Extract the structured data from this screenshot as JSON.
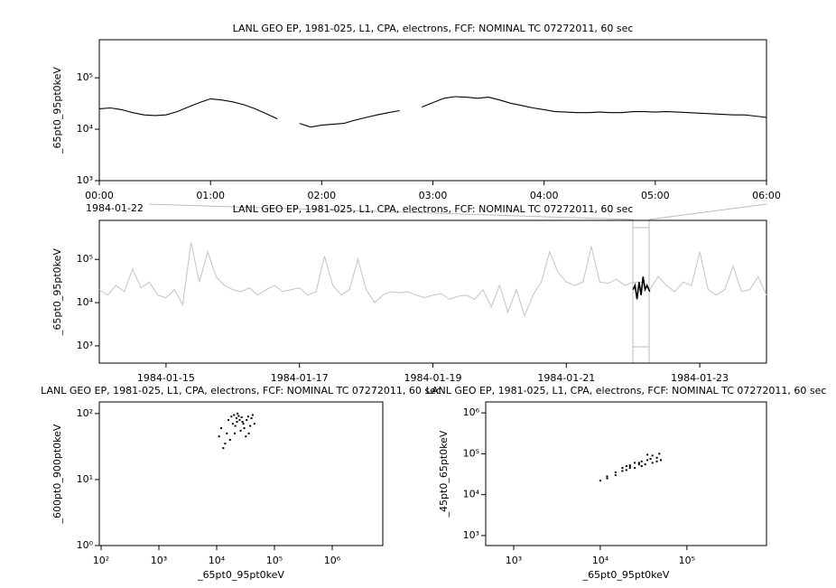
{
  "chart_data": [
    {
      "type": "line",
      "title": "LANL GEO EP, 1981-025, L1, CPA, electrons, FCF: NOMINAL TC 07272011, 60 sec",
      "ylabel": "_65pt0_95pt0keV",
      "date_label": "1984-01-22",
      "log_y": true,
      "xlim": [
        0,
        6
      ],
      "ylim": [
        1000,
        550000
      ],
      "xticks": [
        {
          "value": 0,
          "label": "00:00"
        },
        {
          "value": 1,
          "label": "01:00"
        },
        {
          "value": 2,
          "label": "02:00"
        },
        {
          "value": 3,
          "label": "03:00"
        },
        {
          "value": 4,
          "label": "04:00"
        },
        {
          "value": 5,
          "label": "05:00"
        },
        {
          "value": 6,
          "label": "06:00"
        }
      ],
      "yticks": [
        {
          "value": 1000,
          "label": "10³"
        },
        {
          "value": 10000,
          "label": "10⁴"
        },
        {
          "value": 100000,
          "label": "10⁵"
        }
      ],
      "series": [
        {
          "color": "#000000",
          "x": [
            0,
            0.1,
            0.2,
            0.3,
            0.4,
            0.5,
            0.6,
            0.7,
            0.8,
            0.9,
            1,
            1.1,
            1.2,
            1.3,
            1.4,
            1.5,
            1.6,
            1.7,
            1.8,
            1.9,
            2,
            2.1,
            2.2,
            2.3,
            2.4,
            2.5,
            2.6,
            2.7,
            2.8,
            2.9,
            3,
            3.1,
            3.2,
            3.3,
            3.4,
            3.5,
            3.6,
            3.7,
            3.8,
            3.9,
            4,
            4.1,
            4.2,
            4.3,
            4.4,
            4.5,
            4.6,
            4.7,
            4.8,
            4.9,
            5,
            5.1,
            5.2,
            5.3,
            5.4,
            5.5,
            5.6,
            5.7,
            5.8,
            5.9,
            6
          ],
          "values": [
            25000,
            26000,
            24000,
            21000,
            19000,
            18500,
            19000,
            22000,
            27000,
            33000,
            39000,
            37000,
            34000,
            30000,
            25000,
            20000,
            16000,
            null,
            13000,
            11000,
            12000,
            12500,
            13000,
            15000,
            17000,
            19000,
            21000,
            23000,
            null,
            27000,
            33000,
            40000,
            43000,
            42000,
            40000,
            42000,
            37000,
            32000,
            29000,
            26000,
            24000,
            22000,
            21500,
            21000,
            21000,
            21500,
            21000,
            21000,
            22000,
            22000,
            21500,
            22000,
            21500,
            21000,
            20500,
            20000,
            19500,
            19000,
            19000,
            18000,
            17000
          ]
        }
      ]
    },
    {
      "type": "line",
      "title": "LANL GEO EP, 1981-025, L1, CPA, electrons, FCF: NOMINAL TC 07272011, 60 sec",
      "ylabel": "_65pt0_95pt0keV",
      "log_y": true,
      "xlim": [
        14,
        24
      ],
      "ylim": [
        400,
        800000
      ],
      "xticks": [
        {
          "value": 15,
          "label": "1984-01-15"
        },
        {
          "value": 17,
          "label": "1984-01-17"
        },
        {
          "value": 19,
          "label": "1984-01-19"
        },
        {
          "value": 21,
          "label": "1984-01-21"
        },
        {
          "value": 23,
          "label": "1984-01-23"
        }
      ],
      "yticks": [
        {
          "value": 1000,
          "label": "10³"
        },
        {
          "value": 10000,
          "label": "10⁴"
        },
        {
          "value": 100000,
          "label": "10⁵"
        }
      ],
      "series": [
        {
          "color": "#c8c8c8",
          "x": [
            14,
            14.125,
            14.25,
            14.375,
            14.5,
            14.625,
            14.75,
            14.875,
            15,
            15.125,
            15.25,
            15.375,
            15.5,
            15.625,
            15.75,
            15.875,
            16,
            16.125,
            16.25,
            16.375,
            16.5,
            16.625,
            16.75,
            16.875,
            17,
            17.125,
            17.25,
            17.375,
            17.5,
            17.625,
            17.75,
            17.875,
            18,
            18.125,
            18.25,
            18.375,
            18.5,
            18.625,
            18.75,
            18.875,
            19,
            19.125,
            19.25,
            19.375,
            19.5,
            19.625,
            19.75,
            19.875,
            20,
            20.125,
            20.25,
            20.375,
            20.5,
            20.625,
            20.75,
            20.875,
            21,
            21.125,
            21.25,
            21.375,
            21.5,
            21.625,
            21.75,
            21.875,
            22,
            22.125,
            22.25,
            22.375,
            22.5,
            22.625,
            22.75,
            22.875,
            23,
            23.125,
            23.25,
            23.375,
            23.5,
            23.625,
            23.75,
            23.875,
            24
          ],
          "values": [
            20000,
            15000,
            25000,
            18000,
            60000,
            22000,
            30000,
            15000,
            13000,
            20000,
            9000,
            250000,
            30000,
            150000,
            40000,
            25000,
            20000,
            18000,
            22000,
            15000,
            20000,
            25000,
            18000,
            20000,
            22000,
            15000,
            18000,
            120000,
            25000,
            15000,
            20000,
            100000,
            20000,
            10000,
            15000,
            18000,
            17000,
            18000,
            15000,
            13000,
            15000,
            16000,
            12000,
            14000,
            15000,
            12000,
            20000,
            8000,
            25000,
            6000,
            20000,
            5000,
            15000,
            30000,
            150000,
            50000,
            30000,
            25000,
            30000,
            200000,
            30000,
            28000,
            35000,
            25000,
            30000,
            30000,
            20000,
            40000,
            25000,
            18000,
            30000,
            25000,
            150000,
            20000,
            15000,
            20000,
            70000,
            18000,
            20000,
            40000,
            15000
          ]
        },
        {
          "color": "#000000",
          "x": [
            22,
            22.03,
            22.06,
            22.09,
            22.12,
            22.15,
            22.18,
            22.21,
            22.25
          ],
          "values": [
            20000,
            25000,
            12000,
            30000,
            15000,
            40000,
            20000,
            25000,
            18000
          ]
        }
      ]
    },
    {
      "type": "scatter",
      "title": "LANL GEO EP, 1981-025, L1, CPA, electrons, FCF: NOMINAL TC 07272011, 60 sec",
      "xlabel": "_65pt0_95pt0keV",
      "ylabel": "_600pt0_900pt0keV",
      "log_x": true,
      "log_y": true,
      "color": "#000000",
      "xlim": [
        93,
        7500000
      ],
      "ylim": [
        1,
        150
      ],
      "xticks": [
        {
          "value": 100,
          "label": "10²"
        },
        {
          "value": 1000,
          "label": "10³"
        },
        {
          "value": 10000,
          "label": "10⁴"
        },
        {
          "value": 100000,
          "label": "10⁵"
        },
        {
          "value": 1000000,
          "label": "10⁶"
        }
      ],
      "yticks": [
        {
          "value": 1,
          "label": "10⁰"
        },
        {
          "value": 10,
          "label": "10¹"
        },
        {
          "value": 100,
          "label": "10²"
        }
      ],
      "x": [
        18000,
        20000,
        22000,
        25000,
        19000,
        23000,
        28000,
        30000,
        35000,
        40000,
        45000,
        12000,
        11000,
        13000,
        15000,
        17000,
        21000,
        26000,
        32000,
        38000,
        42000,
        24000,
        27000,
        16000,
        14000,
        20500,
        29000,
        33000,
        36000,
        22500
      ],
      "y": [
        90,
        95,
        85,
        80,
        70,
        100,
        75,
        60,
        90,
        85,
        70,
        60,
        45,
        30,
        50,
        40,
        65,
        55,
        45,
        65,
        95,
        92,
        88,
        80,
        35,
        50,
        70,
        80,
        50,
        75
      ]
    },
    {
      "type": "scatter",
      "title": "LANL GEO EP, 1981-025, L1, CPA, electrons, FCF: NOMINAL TC 07272011, 60 sec",
      "xlabel": "_65pt0_95pt0keV",
      "ylabel": "_45pt0_65pt0keV",
      "log_x": true,
      "log_y": true,
      "color": "#000000",
      "xlim": [
        475,
        830000
      ],
      "ylim": [
        570,
        1850000
      ],
      "xticks": [
        {
          "value": 1000,
          "label": "10³"
        },
        {
          "value": 10000,
          "label": "10⁴"
        },
        {
          "value": 100000,
          "label": "10⁵"
        }
      ],
      "yticks": [
        {
          "value": 1000,
          "label": "10³"
        },
        {
          "value": 10000,
          "label": "10⁴"
        },
        {
          "value": 100000,
          "label": "10⁵"
        },
        {
          "value": 1000000,
          "label": "10⁶"
        }
      ],
      "x": [
        10000,
        12000,
        15000,
        18000,
        22000,
        28000,
        35000,
        45000,
        50000,
        40000,
        30000,
        25000,
        20000,
        18000,
        22000,
        30000,
        40000,
        48000,
        35000,
        25000,
        15000,
        12000,
        20000,
        22000,
        28000,
        38000,
        45000,
        33000
      ],
      "y": [
        22000,
        25000,
        30000,
        38000,
        45000,
        55000,
        70000,
        80000,
        70000,
        60000,
        50000,
        45000,
        40000,
        45000,
        50000,
        65000,
        90000,
        100000,
        95000,
        60000,
        35000,
        28000,
        50000,
        52000,
        60000,
        75000,
        65000,
        55000
      ]
    }
  ]
}
